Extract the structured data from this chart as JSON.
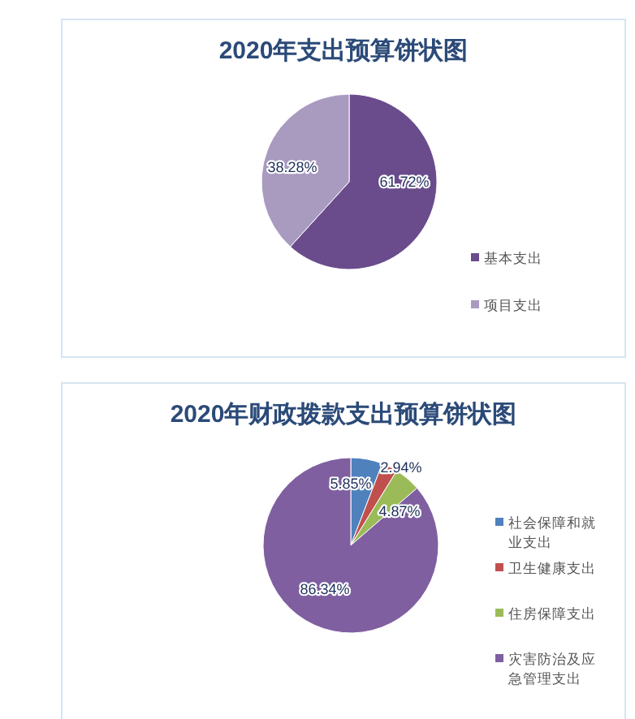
{
  "chart_data": [
    {
      "type": "pie",
      "title": "2020年支出预算饼状图",
      "categories": [
        "基本支出",
        "项目支出"
      ],
      "values": [
        61.72,
        38.28
      ],
      "colors": [
        "#6a4c8c",
        "#a99abf"
      ],
      "value_labels": [
        "61.72%",
        "38.28%"
      ],
      "legend": "right"
    },
    {
      "type": "pie",
      "title": "2020年财政拨款支出预算饼状图",
      "categories": [
        "社会保障和就业支出",
        "卫生健康支出",
        "住房保障支出",
        "灾害防治及应急管理支出"
      ],
      "values": [
        5.85,
        2.94,
        4.87,
        86.34
      ],
      "colors": [
        "#4f81bd",
        "#c0504d",
        "#9bbb59",
        "#7f5fa0"
      ],
      "value_labels": [
        "5.85%",
        "2.94%",
        "4.87%",
        "86.34%"
      ],
      "legend": "right"
    }
  ]
}
